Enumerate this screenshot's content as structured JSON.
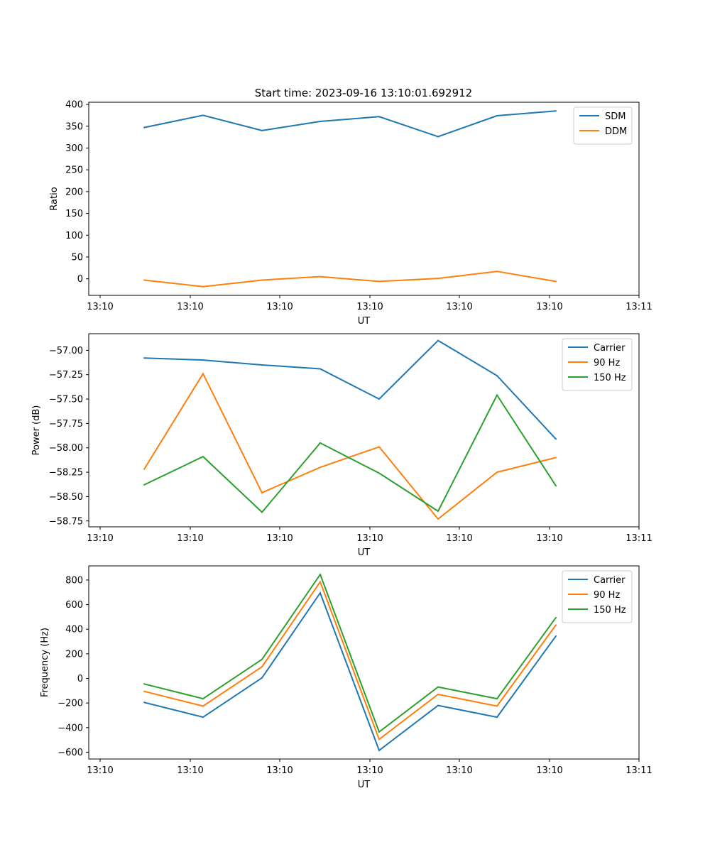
{
  "figure_title": "Start time: 2023-09-16 13:10:01.692912",
  "chart_data": [
    {
      "type": "line",
      "title": "Start time: 2023-09-16 13:10:01.692912",
      "xlabel": "UT",
      "ylabel": "Ratio",
      "x_tick_labels": [
        "13:10",
        "13:10",
        "13:10",
        "13:10",
        "13:10",
        "13:10",
        "13:11"
      ],
      "y_ticks": [
        0,
        50,
        100,
        150,
        200,
        250,
        300,
        350,
        400
      ],
      "y_tick_labels": [
        "0",
        "50",
        "100",
        "150",
        "200",
        "250",
        "300",
        "350",
        "400"
      ],
      "ylim": [
        -38,
        405
      ],
      "grid": false,
      "legend_location": "upper right",
      "series": [
        {
          "name": "SDM",
          "color": "#1f77b4",
          "values": [
            347,
            375,
            340,
            361,
            372,
            326,
            374,
            385
          ]
        },
        {
          "name": "DDM",
          "color": "#ff7f0e",
          "values": [
            -3,
            -18,
            -3,
            5,
            -6,
            1,
            17,
            -6
          ]
        }
      ]
    },
    {
      "type": "line",
      "title": "",
      "xlabel": "UT",
      "ylabel": "Power (dB)",
      "x_tick_labels": [
        "13:10",
        "13:10",
        "13:10",
        "13:10",
        "13:10",
        "13:10",
        "13:11"
      ],
      "y_ticks": [
        -58.75,
        -58.5,
        -58.25,
        -58.0,
        -57.75,
        -57.5,
        -57.25,
        -57.0
      ],
      "y_tick_labels": [
        "−58.75",
        "−58.50",
        "−58.25",
        "−58.00",
        "−57.75",
        "−57.50",
        "−57.25",
        "−57.00"
      ],
      "ylim": [
        -58.81,
        -56.83
      ],
      "grid": false,
      "legend_location": "upper right",
      "series": [
        {
          "name": "Carrier",
          "color": "#1f77b4",
          "values": [
            -57.08,
            -57.1,
            -57.15,
            -57.19,
            -57.5,
            -56.9,
            -57.26,
            -57.91
          ]
        },
        {
          "name": "90 Hz",
          "color": "#ff7f0e",
          "values": [
            -58.22,
            -57.24,
            -58.46,
            -58.2,
            -57.99,
            -58.73,
            -58.25,
            -58.1
          ]
        },
        {
          "name": "150 Hz",
          "color": "#2ca02c",
          "values": [
            -58.38,
            -58.09,
            -58.66,
            -57.95,
            -58.26,
            -58.65,
            -57.46,
            -58.39
          ]
        }
      ]
    },
    {
      "type": "line",
      "title": "",
      "xlabel": "UT",
      "ylabel": "Frequency (Hz)",
      "x_tick_labels": [
        "13:10",
        "13:10",
        "13:10",
        "13:10",
        "13:10",
        "13:10",
        "13:11"
      ],
      "y_ticks": [
        -600,
        -400,
        -200,
        0,
        200,
        400,
        600,
        800
      ],
      "y_tick_labels": [
        "−600",
        "−400",
        "−200",
        "0",
        "200",
        "400",
        "600",
        "800"
      ],
      "ylim": [
        -655,
        915
      ],
      "grid": false,
      "legend_location": "upper right",
      "series": [
        {
          "name": "Carrier",
          "color": "#1f77b4",
          "values": [
            -195,
            -315,
            5,
            695,
            -585,
            -220,
            -315,
            345
          ]
        },
        {
          "name": "90 Hz",
          "color": "#ff7f0e",
          "values": [
            -105,
            -225,
            95,
            785,
            -495,
            -130,
            -225,
            435
          ]
        },
        {
          "name": "150 Hz",
          "color": "#2ca02c",
          "values": [
            -45,
            -165,
            155,
            845,
            -435,
            -70,
            -165,
            495
          ]
        }
      ]
    }
  ]
}
